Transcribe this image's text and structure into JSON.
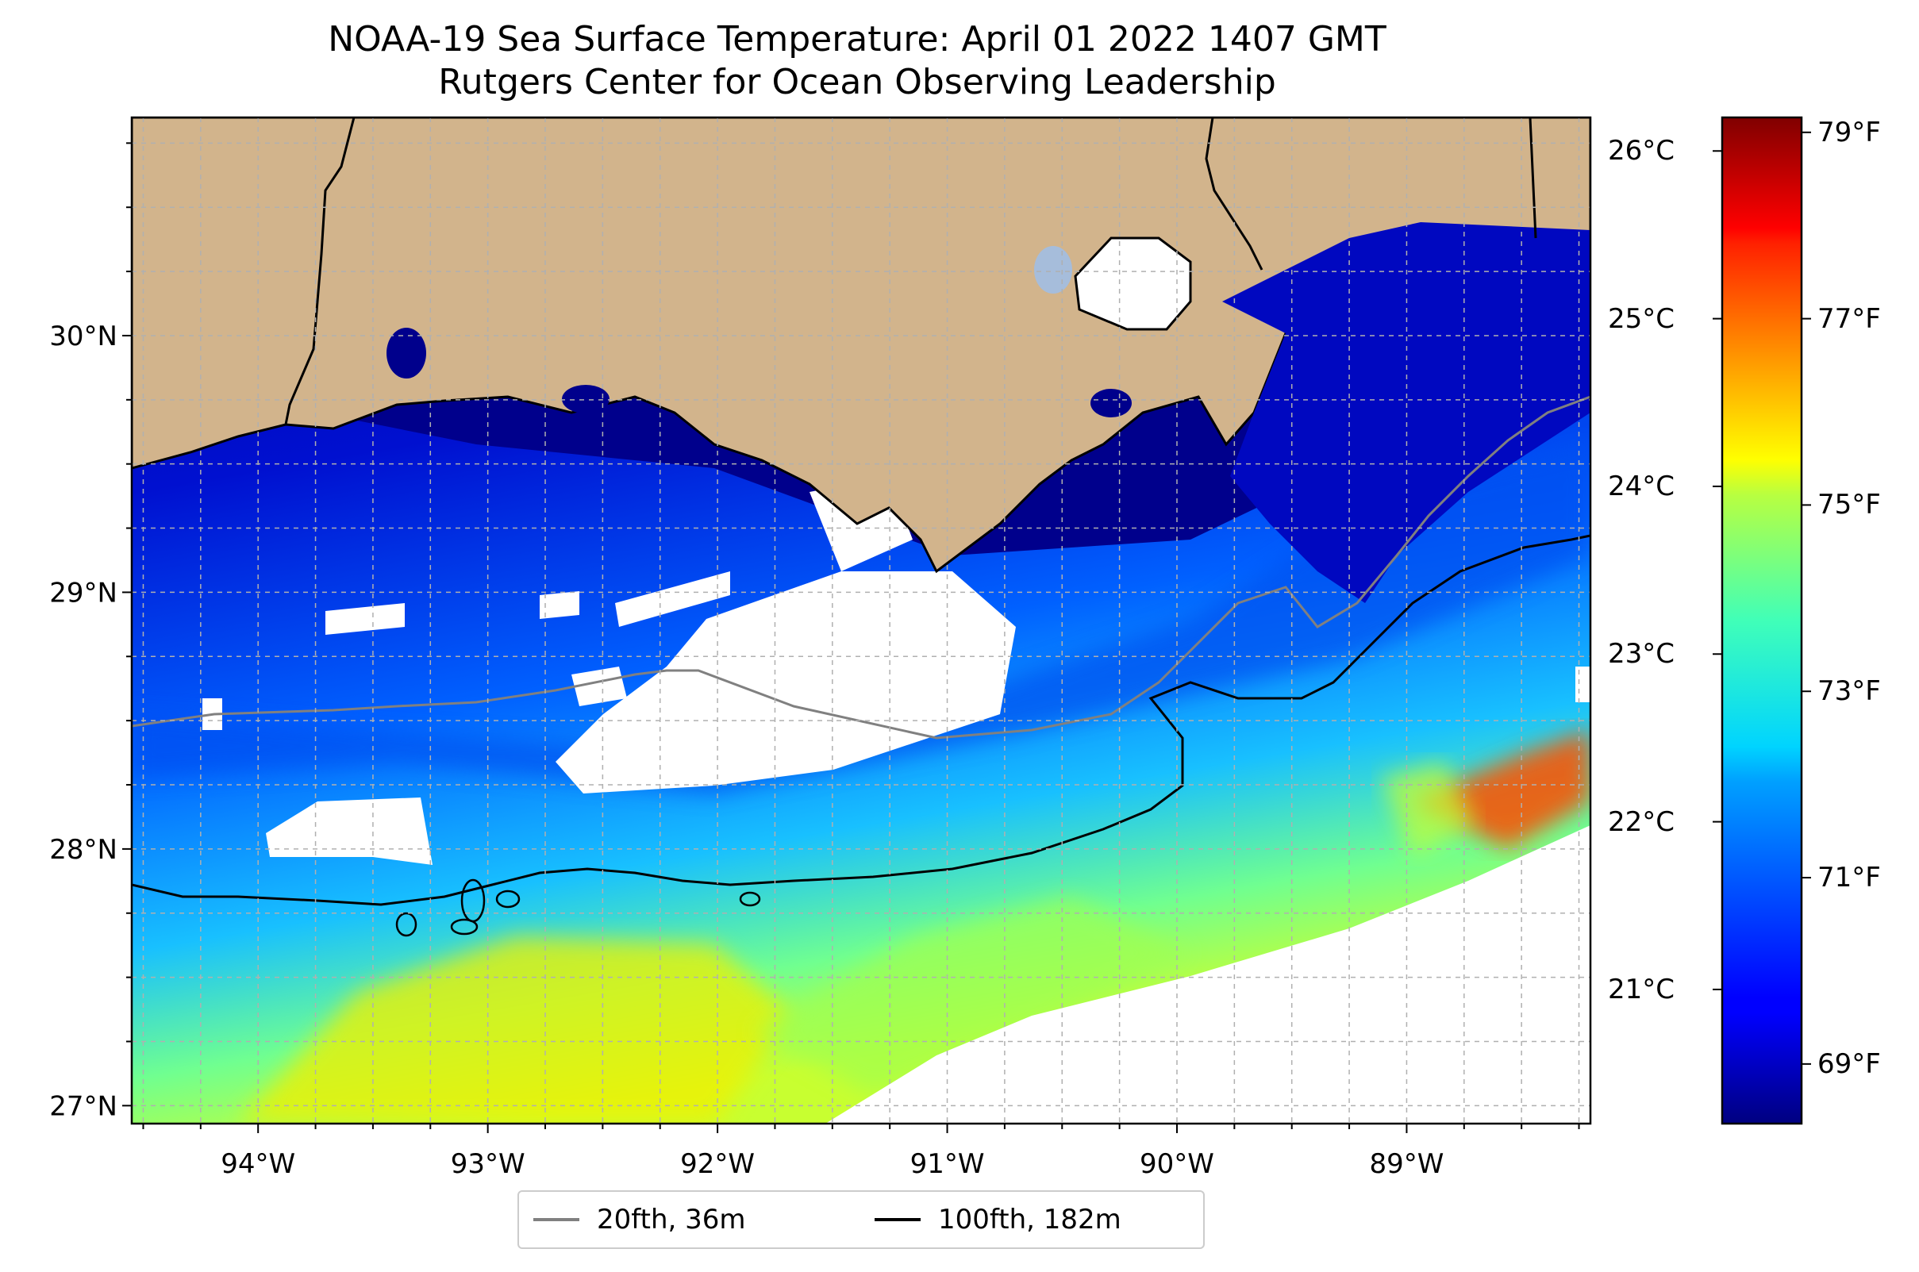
{
  "title_line1": "NOAA-19 Sea Surface Temperature: April 01 2022 1407 GMT",
  "title_line2": "Rutgers Center for Ocean Observing Leadership",
  "map": {
    "region": "Northern Gulf of Mexico / Louisiana coast",
    "lon_range": [
      -94.55,
      -88.2
    ],
    "lat_range": [
      26.93,
      30.85
    ],
    "lon_ticks": [
      "94°W",
      "93°W",
      "92°W",
      "91°W",
      "90°W",
      "89°W"
    ],
    "lat_ticks": [
      "30°N",
      "29°N",
      "28°N",
      "27°N"
    ],
    "grid": true,
    "colors": {
      "land": "#d2b48c",
      "no_data": "#ffffff",
      "inland_water": "#a6bddb",
      "grid": "#b0b0b0"
    }
  },
  "legend": {
    "placement": "bottom-center",
    "items": [
      {
        "label": "20fth, 36m",
        "color": "#808080"
      },
      {
        "label": "100fth, 182m",
        "color": "#000000"
      }
    ]
  },
  "colorbar": {
    "colormap": "jet",
    "range_c": [
      20.2,
      26.2
    ],
    "celsius_ticks": [
      "26°C",
      "25°C",
      "24°C",
      "23°C",
      "22°C",
      "21°C"
    ],
    "fahrenheit_ticks": [
      "79°F",
      "77°F",
      "75°F",
      "73°F",
      "71°F",
      "69°F"
    ]
  }
}
